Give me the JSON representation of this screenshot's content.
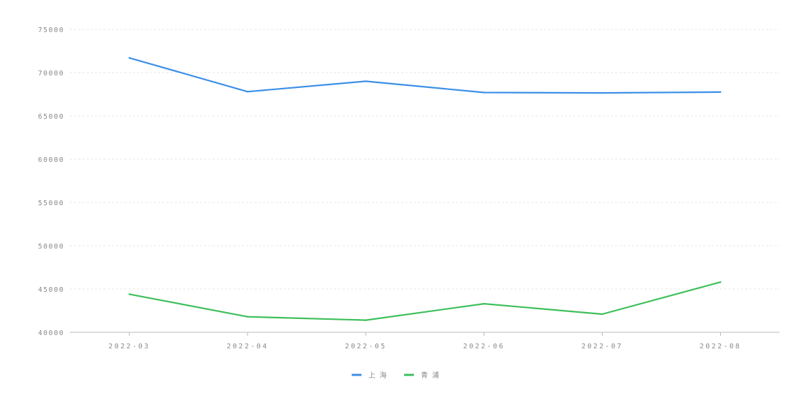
{
  "chart_data": {
    "type": "line",
    "title": "",
    "xlabel": "",
    "ylabel": "",
    "categories": [
      "2022-03",
      "2022-04",
      "2022-05",
      "2022-06",
      "2022-07",
      "2022-08"
    ],
    "ylim": [
      40000,
      75000
    ],
    "yticks": [
      40000,
      45000,
      50000,
      55000,
      60000,
      65000,
      70000,
      75000
    ],
    "grid": true,
    "legend_position": "bottom-center",
    "series": [
      {
        "name": "上 海",
        "color": "#3b8fe8",
        "values": [
          71700,
          67800,
          69000,
          67700,
          67650,
          67750
        ]
      },
      {
        "name": "青 浦",
        "color": "#3cbf5a",
        "values": [
          44400,
          41800,
          41400,
          43300,
          42100,
          45800
        ]
      }
    ]
  }
}
